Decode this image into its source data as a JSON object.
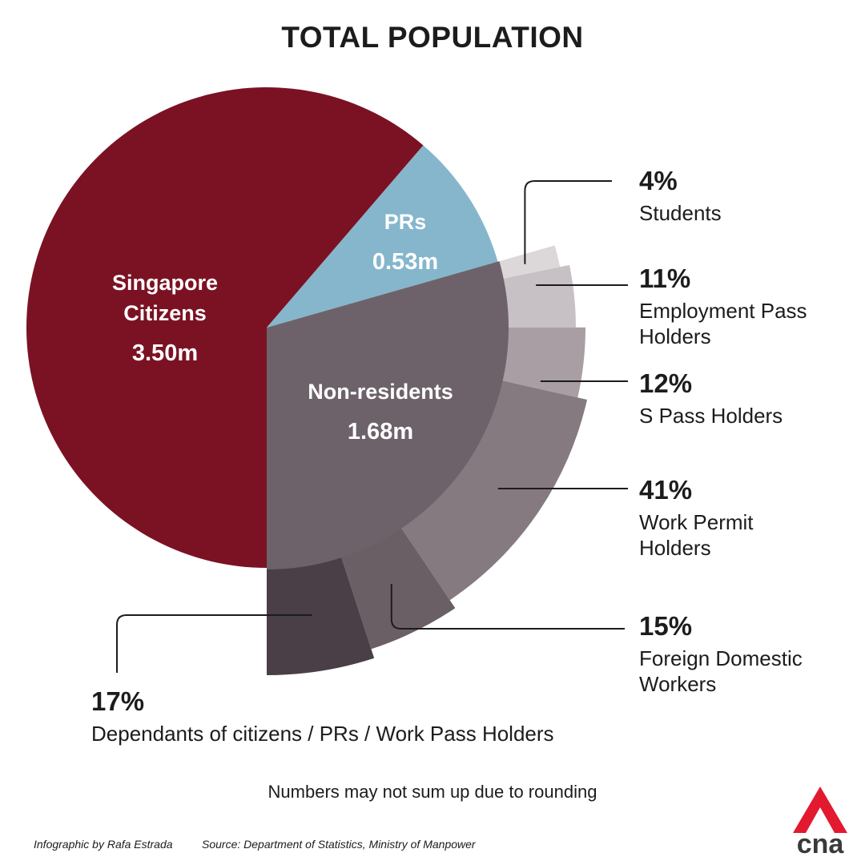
{
  "title": "TOTAL POPULATION",
  "colors": {
    "citizens": "#7b1223",
    "prs": "#85b6cc",
    "non_residents": "#6e626a",
    "students": "#dcd8da",
    "employment_pass": "#c7c0c4",
    "s_pass": "#a89ea3",
    "work_permit": "#857a80",
    "fdw": "#6b5f66",
    "dependants": "#4b3f47",
    "logo_red": "#e3192f",
    "logo_text": "#3a3a3a"
  },
  "chart_data": [
    {
      "type": "pie",
      "title": "TOTAL POPULATION",
      "unit": "m",
      "slices": [
        {
          "name": "Singapore Citizens",
          "value": 3.5,
          "display": "3.50m",
          "label_lines": [
            "Singapore",
            "Citizens"
          ]
        },
        {
          "name": "PRs",
          "value": 0.53,
          "display": "0.53m",
          "label_lines": [
            "PRs"
          ]
        },
        {
          "name": "Non-residents",
          "value": 1.68,
          "display": "1.68m",
          "label_lines": [
            "Non-residents"
          ]
        }
      ]
    },
    {
      "type": "pie",
      "parent": "Non-residents",
      "unit": "%",
      "slices": [
        {
          "name": "Students",
          "value": 4,
          "display": "4%"
        },
        {
          "name": "Employment Pass Holders",
          "value": 11,
          "display": "11%"
        },
        {
          "name": "S Pass Holders",
          "value": 12,
          "display": "12%"
        },
        {
          "name": "Work Permit Holders",
          "value": 41,
          "display": "41%"
        },
        {
          "name": "Foreign Domestic Workers",
          "value": 15,
          "display": "15%"
        },
        {
          "name": "Dependants of citizens / PRs / Work Pass Holders",
          "value": 17,
          "display": "17%"
        }
      ]
    }
  ],
  "breakdown_labels": [
    {
      "percent": "4%",
      "lines": [
        "Students"
      ]
    },
    {
      "percent": "11%",
      "lines": [
        "Employment Pass",
        "Holders"
      ]
    },
    {
      "percent": "12%",
      "lines": [
        "S Pass Holders"
      ]
    },
    {
      "percent": "41%",
      "lines": [
        "Work Permit",
        "Holders"
      ]
    },
    {
      "percent": "15%",
      "lines": [
        "Foreign Domestic",
        "Workers"
      ]
    },
    {
      "percent": "17%",
      "lines": [
        "Dependants of citizens / PRs / Work Pass Holders"
      ]
    }
  ],
  "footnote": "Numbers may not sum up due to rounding",
  "credit": "Infographic by Rafa Estrada",
  "source": "Source: Department of Statistics, Ministry of Manpower",
  "logo_text": "cna"
}
